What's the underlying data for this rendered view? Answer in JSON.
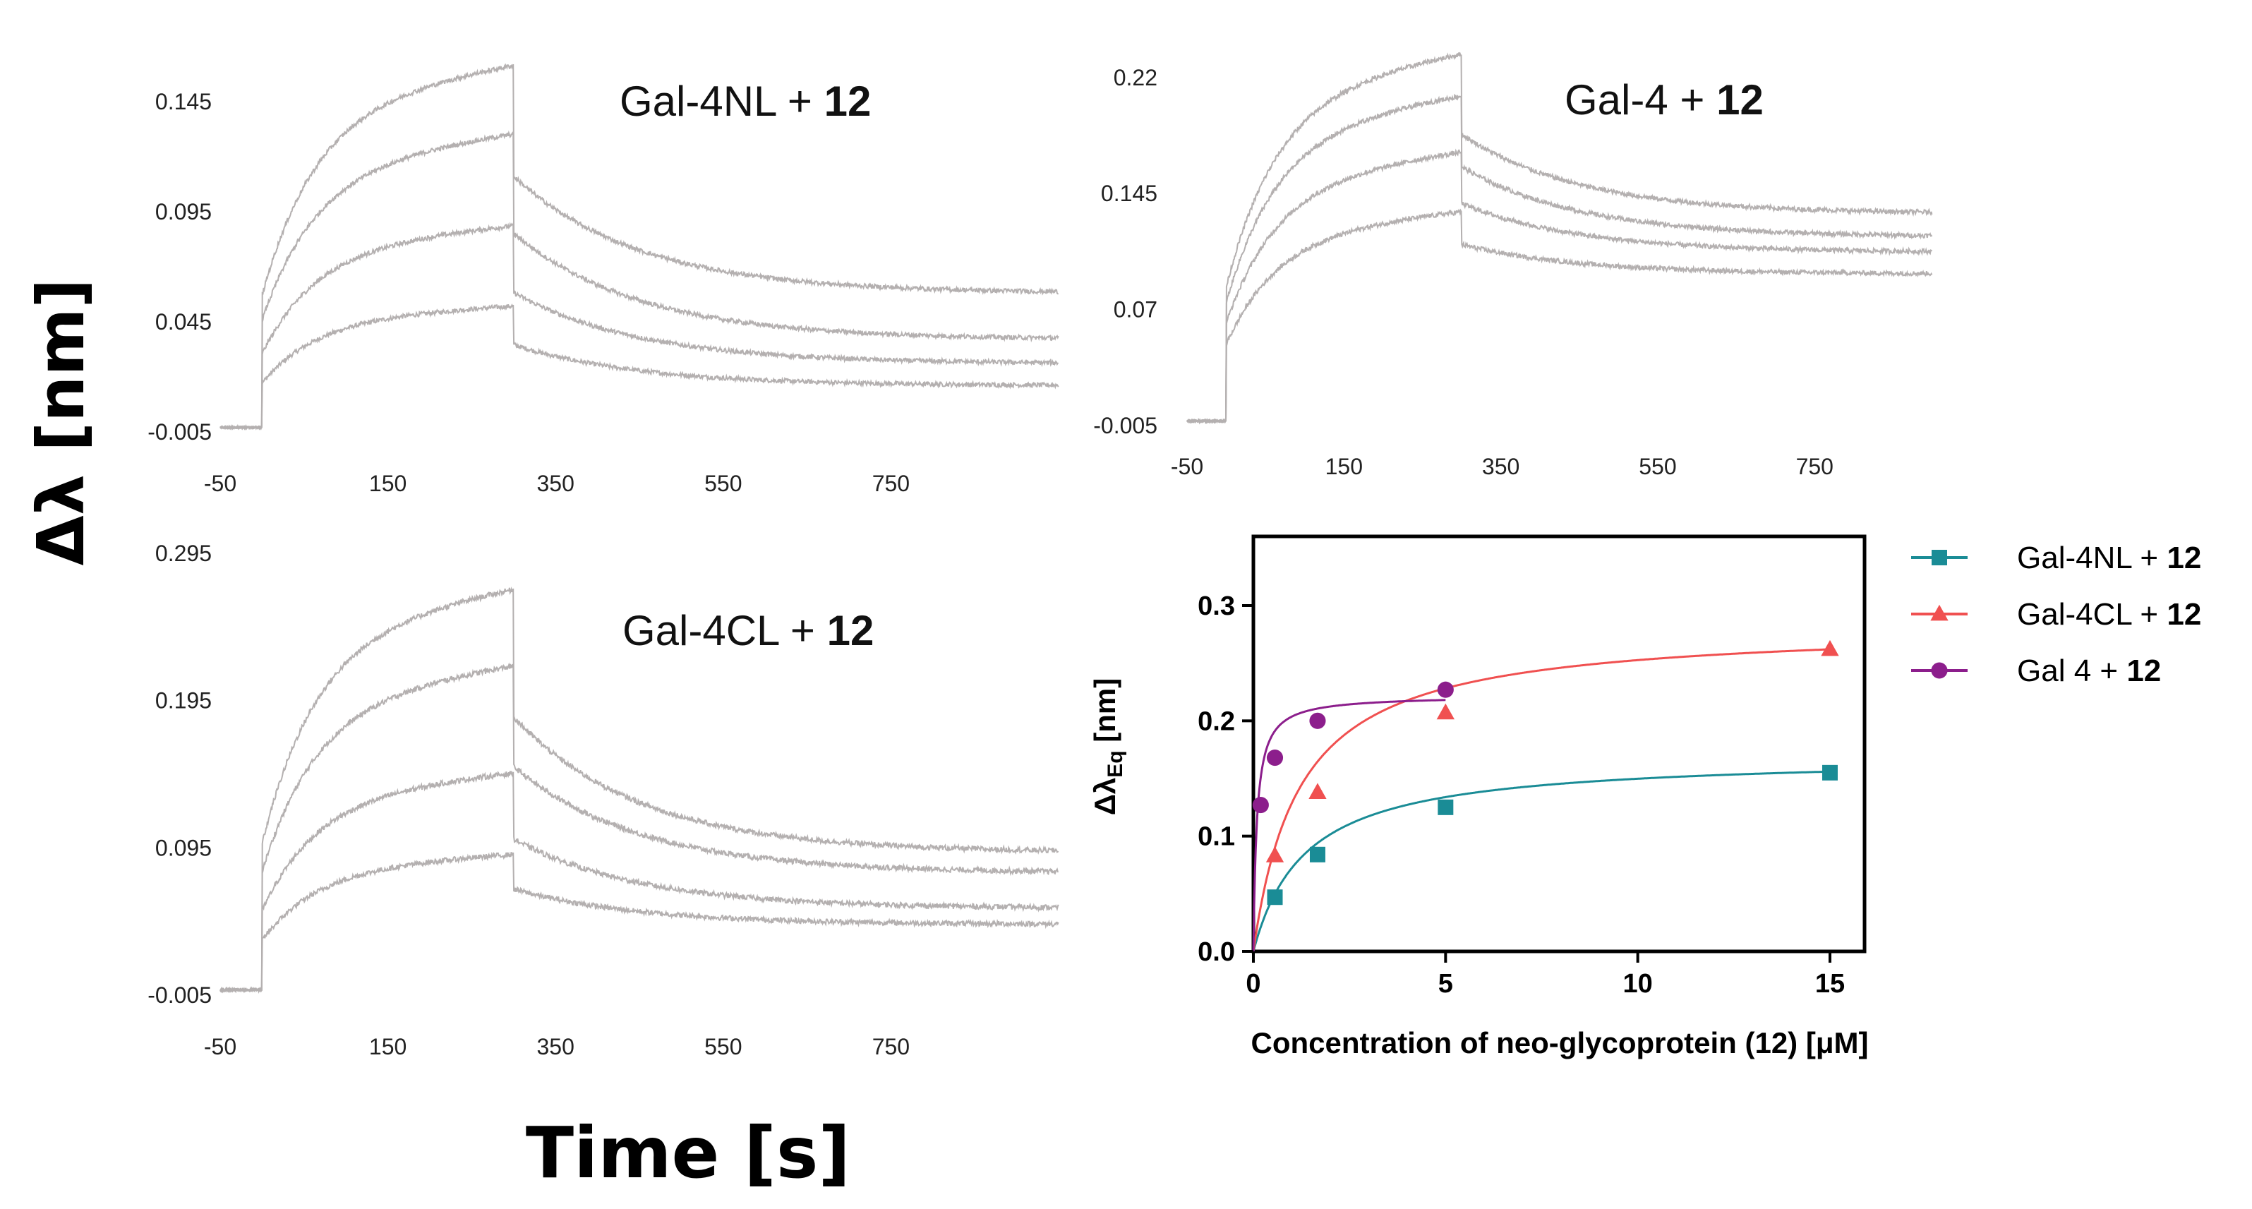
{
  "figure": {
    "y_axis_label": "Δλ [nm]",
    "x_axis_label": "Time [s]"
  },
  "colors": {
    "trace": "#b4b0b0",
    "gal4nl": "#1a8c96",
    "gal4cl": "#f05050",
    "gal4": "#8c1e8c"
  },
  "chart_data": [
    {
      "type": "line",
      "id": "sensorgram_gal4nl",
      "title": "Gal-4NL + ",
      "title_bold": "12",
      "x_ticks": [
        "-50",
        "150",
        "350",
        "550",
        "750"
      ],
      "y_ticks": [
        "-0.005",
        "0.045",
        "0.095",
        "0.145"
      ],
      "xlim": [
        -50,
        950
      ],
      "ylim": [
        -0.005,
        0.168
      ],
      "association_end_s": 300,
      "series_plateaus": [
        0.05,
        0.085,
        0.125,
        0.155
      ],
      "series_end_values": [
        0.016,
        0.026,
        0.037,
        0.058
      ]
    },
    {
      "type": "line",
      "id": "sensorgram_gal4",
      "title": "Gal-4 + ",
      "title_bold": "12",
      "x_ticks": [
        "-50",
        "150",
        "350",
        "550",
        "750"
      ],
      "y_ticks": [
        "-0.005",
        "0.07",
        "0.145",
        "0.22"
      ],
      "xlim": [
        -50,
        900
      ],
      "ylim": [
        -0.005,
        0.245
      ],
      "association_end_s": 300,
      "series_plateaus": [
        0.128,
        0.165,
        0.2,
        0.226
      ],
      "series_end_values": [
        0.093,
        0.107,
        0.117,
        0.132
      ]
    },
    {
      "type": "line",
      "id": "sensorgram_gal4cl",
      "title": "Gal-4CL + ",
      "title_bold": "12",
      "x_ticks": [
        "-50",
        "150",
        "350",
        "550",
        "750"
      ],
      "y_ticks": [
        "-0.005",
        "0.095",
        "0.195",
        "0.295"
      ],
      "xlim": [
        -50,
        950
      ],
      "ylim": [
        -0.005,
        0.295
      ],
      "association_end_s": 300,
      "series_plateaus": [
        0.087,
        0.14,
        0.21,
        0.26
      ],
      "series_end_values": [
        0.043,
        0.054,
        0.078,
        0.092
      ]
    },
    {
      "type": "scatter",
      "id": "binding_isotherm",
      "xlabel": "Concentration of neo-glycoprotein (12) [μM]",
      "ylabel": "Δλ",
      "ylabel_sub": "Eq",
      "ylabel_unit": " [nm]",
      "x_ticks": [
        "0",
        "5",
        "10",
        "15"
      ],
      "y_ticks": [
        "0.0",
        "0.1",
        "0.2",
        "0.3"
      ],
      "xlim": [
        0,
        15.9
      ],
      "ylim": [
        0,
        0.36
      ],
      "series": [
        {
          "name": "Gal-4NL + ",
          "name_bold": "12",
          "marker": "square",
          "color_key": "gal4nl",
          "x": [
            0.56,
            1.67,
            5,
            15
          ],
          "y": [
            0.047,
            0.084,
            0.125,
            0.155
          ],
          "fit": {
            "bmax": 0.17,
            "kd": 1.35
          }
        },
        {
          "name": "Gal-4CL + ",
          "name_bold": "12",
          "marker": "triangle",
          "color_key": "gal4cl",
          "x": [
            0.56,
            1.67,
            5,
            15
          ],
          "y": [
            0.083,
            0.138,
            0.207,
            0.262
          ],
          "fit": {
            "bmax": 0.283,
            "kd": 1.2
          }
        },
        {
          "name": "Gal 4 + ",
          "name_bold": "12",
          "marker": "circle",
          "color_key": "gal4",
          "x": [
            0.19,
            0.56,
            1.67,
            5
          ],
          "y": [
            0.127,
            0.168,
            0.2,
            0.227
          ],
          "fit": {
            "bmax": 0.222,
            "kd": 0.09
          }
        }
      ]
    }
  ]
}
